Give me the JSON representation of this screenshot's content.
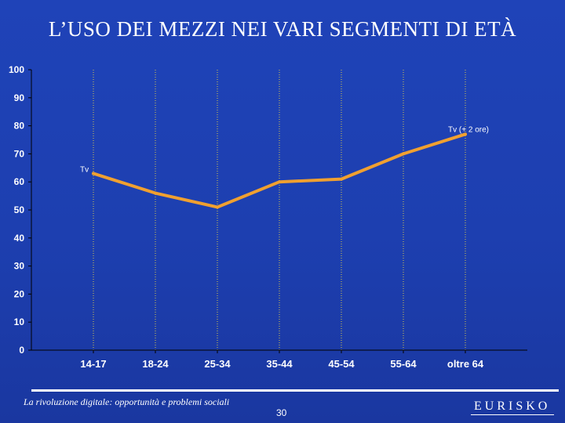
{
  "slide": {
    "title": "L’USO DEI MEZZI NEI VARI SEGMENTI DI ETÀ",
    "footer_text": "La rivoluzione digitale: opportunità e problemi sociali",
    "page_number": "30",
    "brand_logo_text": "EURISKO"
  },
  "colors": {
    "background": "#1f43b8",
    "line": "#f0a030",
    "text": "#ffffff",
    "brand_accent": "#e05a1e"
  },
  "chart_data": {
    "type": "line",
    "categories": [
      "14-17",
      "18-24",
      "25-34",
      "35-44",
      "45-54",
      "55-64",
      "oltre 64"
    ],
    "series": [
      {
        "name": "Tv",
        "values": [
          63,
          56,
          51,
          60,
          61,
          70,
          77
        ]
      }
    ],
    "annotations": [
      {
        "text": "Tv",
        "category": "14-17"
      },
      {
        "text": "Tv (+ 2 ore)",
        "category": "oltre 64"
      }
    ],
    "yticks": [
      "100",
      "90",
      "80",
      "70",
      "60",
      "50",
      "40",
      "30",
      "20",
      "10",
      "0"
    ],
    "ylim": [
      0,
      100
    ],
    "title": "",
    "xlabel": "",
    "ylabel": "",
    "grid": "vertical dotted",
    "legend": "none"
  }
}
